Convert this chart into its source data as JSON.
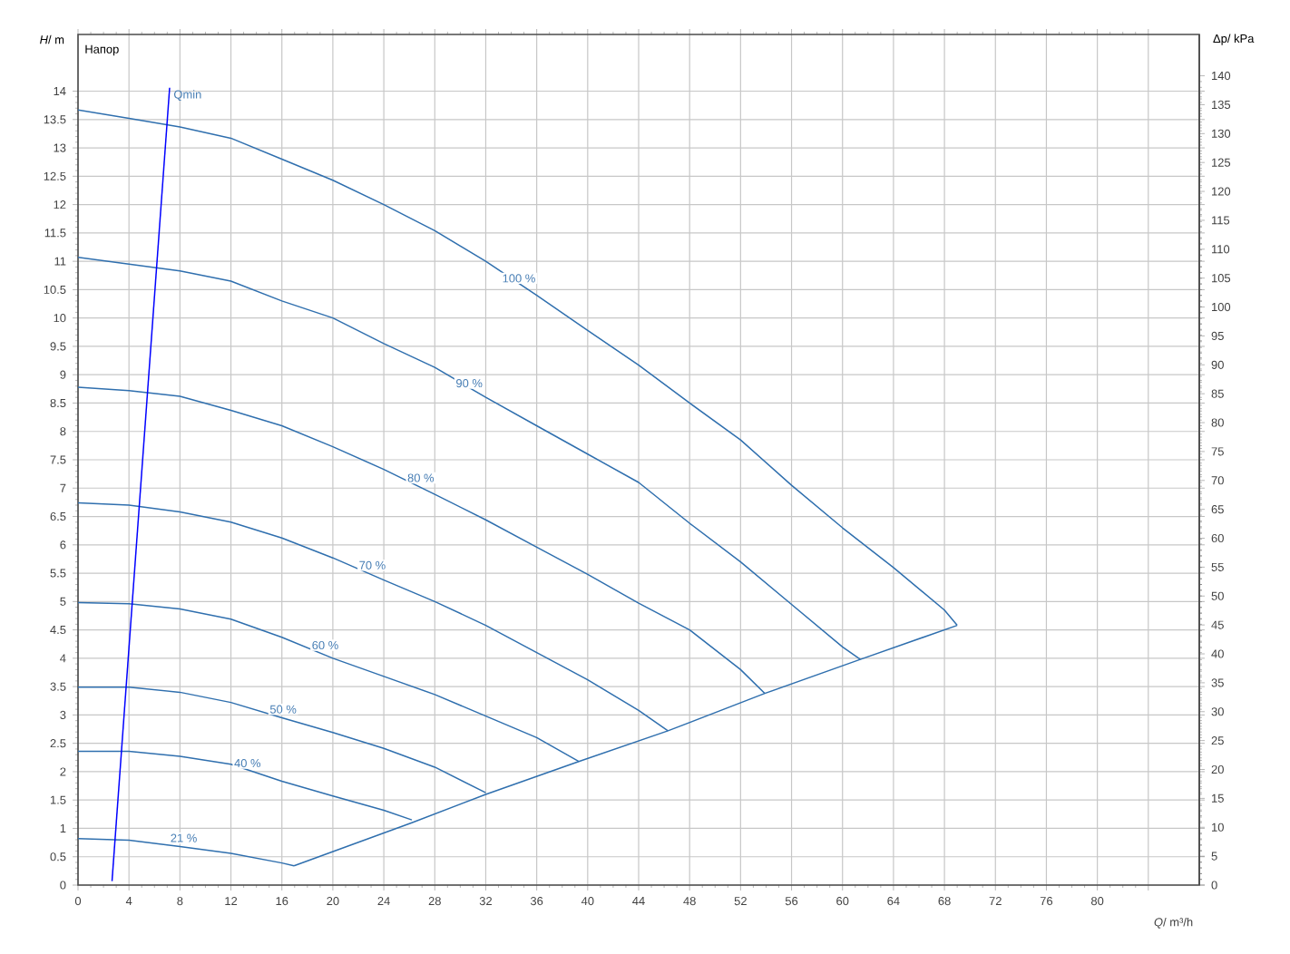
{
  "chart_data": {
    "type": "line",
    "xlabel": "*Q*/ m³/h",
    "ylabel": "*H*/ m",
    "y2label": "Δp/ kPa",
    "xlim": [
      0,
      88
    ],
    "ylim": [
      0,
      15
    ],
    "y2lim": [
      0,
      147.15
    ],
    "xticks": [
      0,
      4,
      8,
      12,
      16,
      20,
      24,
      28,
      32,
      36,
      40,
      44,
      48,
      52,
      56,
      60,
      64,
      68,
      72,
      76,
      80,
      {
        "value": 84,
        "label": null
      }
    ],
    "yticks": [
      0,
      0.5,
      1,
      1.5,
      2,
      2.5,
      3,
      3.5,
      4,
      4.5,
      5,
      5.5,
      6,
      6.5,
      7,
      7.5,
      8,
      8.5,
      9,
      9.5,
      10,
      10.5,
      11,
      11.5,
      12,
      12.5,
      13,
      13.5,
      14
    ],
    "y2ticks": [
      0,
      5,
      10,
      15,
      20,
      25,
      30,
      35,
      40,
      45,
      50,
      55,
      60,
      65,
      70,
      75,
      80,
      85,
      90,
      95,
      100,
      105,
      110,
      115,
      120,
      125,
      130,
      135,
      140
    ],
    "grid": true,
    "series": [
      {
        "color": "#2f6fae",
        "x": [
          0,
          4,
          8,
          12,
          16,
          20,
          24,
          28,
          32,
          36,
          40,
          44,
          48,
          52,
          56,
          60,
          64,
          68,
          69
        ],
        "values": [
          13.67,
          13.52,
          13.37,
          13.17,
          12.8,
          12.43,
          12.0,
          11.54,
          11.0,
          10.4,
          9.78,
          9.17,
          8.5,
          7.85,
          7.05,
          6.3,
          5.6,
          4.85,
          4.58
        ]
      },
      {
        "color": "#2f6fae",
        "x": [
          0,
          4,
          8,
          12,
          16,
          20,
          24,
          28,
          32,
          36,
          40,
          44,
          48,
          52,
          56,
          60,
          61.4
        ],
        "values": [
          11.07,
          10.95,
          10.83,
          10.65,
          10.3,
          10.0,
          9.55,
          9.13,
          8.6,
          8.1,
          7.6,
          7.1,
          6.38,
          5.7,
          4.95,
          4.2,
          3.98
        ]
      },
      {
        "color": "#2f6fae",
        "x": [
          0,
          4,
          8,
          12,
          16,
          20,
          24,
          28,
          32,
          36,
          40,
          44,
          48,
          52,
          53.9
        ],
        "values": [
          8.78,
          8.72,
          8.62,
          8.37,
          8.1,
          7.73,
          7.33,
          6.89,
          6.44,
          5.96,
          5.48,
          4.97,
          4.5,
          3.8,
          3.38
        ]
      },
      {
        "color": "#2f6fae",
        "x": [
          0,
          4,
          8,
          12,
          16,
          20,
          24,
          28,
          32,
          36,
          40,
          44,
          46.3
        ],
        "values": [
          6.74,
          6.7,
          6.58,
          6.4,
          6.12,
          5.77,
          5.38,
          5.0,
          4.58,
          4.1,
          3.62,
          3.08,
          2.72
        ]
      },
      {
        "color": "#2f6fae",
        "x": [
          0,
          4,
          8,
          12,
          16,
          20,
          24,
          28,
          32,
          36,
          39.3
        ],
        "values": [
          4.98,
          4.96,
          4.87,
          4.69,
          4.37,
          4.0,
          3.68,
          3.36,
          2.98,
          2.6,
          2.18
        ]
      },
      {
        "color": "#2f6fae",
        "x": [
          0,
          4,
          8,
          12,
          16,
          20,
          24,
          28,
          32
        ],
        "values": [
          3.49,
          3.49,
          3.4,
          3.22,
          2.95,
          2.69,
          2.41,
          2.08,
          1.63
        ]
      },
      {
        "color": "#2f6fae",
        "x": [
          0,
          4,
          8,
          12,
          16,
          20,
          24,
          26.2
        ],
        "values": [
          2.36,
          2.36,
          2.27,
          2.13,
          1.83,
          1.57,
          1.32,
          1.15
        ]
      },
      {
        "color": "#2f6fae",
        "x": [
          0,
          4,
          8,
          12,
          16,
          16.95
        ],
        "values": [
          0.82,
          0.79,
          0.68,
          0.56,
          0.39,
          0.34
        ]
      },
      {
        "color": "#2f6fae",
        "x": [
          16.95,
          26.2,
          32,
          39.3,
          46.3,
          53.9,
          61.4,
          69
        ],
        "values": [
          0.34,
          1.1,
          1.6,
          2.18,
          2.72,
          3.38,
          3.98,
          4.58
        ]
      },
      {
        "name": "Qmin",
        "color": "#0000ff",
        "x": [
          2.67,
          7.19
        ],
        "values": [
          0.07,
          14.06
        ]
      }
    ],
    "annotations": [
      "Напор",
      {
        "text": "100 %",
        "x": 34.6,
        "y": 10.7
      },
      {
        "text": "90 %",
        "x": 30.7,
        "y": 8.85
      },
      {
        "text": "80 %",
        "x": 26.9,
        "y": 7.18
      },
      {
        "text": "70 %",
        "x": 23.1,
        "y": 5.64
      },
      {
        "text": "60 %",
        "x": 19.4,
        "y": 4.23
      },
      {
        "text": "50 %",
        "x": 16.1,
        "y": 3.1
      },
      {
        "text": "40 %",
        "x": 13.3,
        "y": 2.15
      },
      {
        "text": "21 %",
        "x": 8.3,
        "y": 0.83
      }
    ]
  }
}
